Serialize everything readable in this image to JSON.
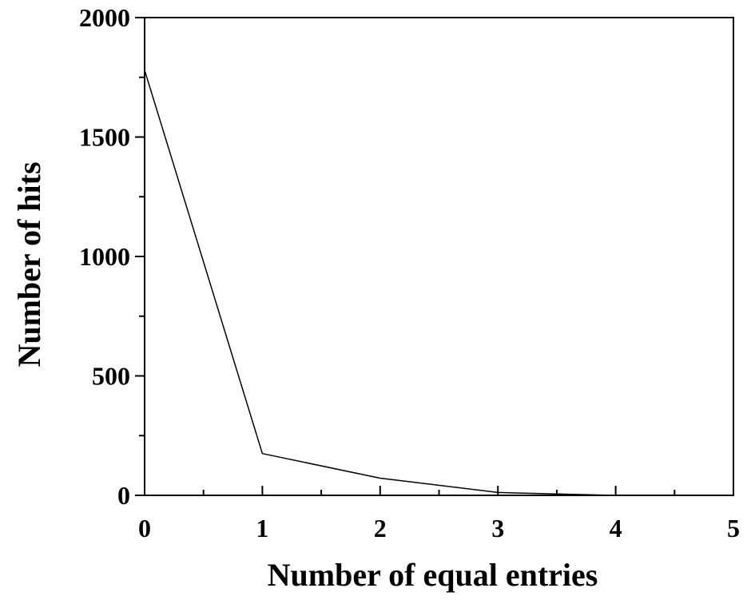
{
  "chart_data": {
    "type": "line",
    "title": "",
    "xlabel": "Number of equal entries",
    "ylabel": "Number of hits",
    "xlim": [
      0,
      5
    ],
    "ylim": [
      0,
      2000
    ],
    "x_ticks": [
      0,
      1,
      2,
      3,
      4,
      5
    ],
    "y_ticks": [
      0,
      500,
      1000,
      1500,
      2000
    ],
    "grid": false,
    "legend": false,
    "line_color": "#000000",
    "series": [
      {
        "x": [
          0,
          1,
          2,
          3,
          4
        ],
        "y": [
          1780,
          175,
          72,
          12,
          0
        ]
      }
    ]
  }
}
